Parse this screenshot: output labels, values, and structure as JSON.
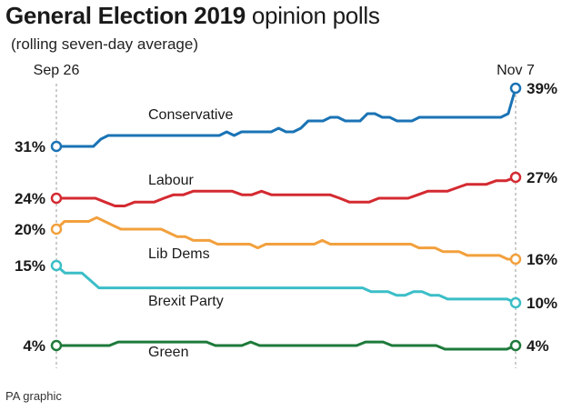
{
  "title_bold": "General Election 2019",
  "title_light": "opinion polls",
  "subtitle": "(rolling seven-day average)",
  "source": "PA graphic",
  "chart_data": {
    "type": "line",
    "title": "General Election 2019 opinion polls",
    "subtitle": "(rolling seven-day average)",
    "x_start_label": "Sep 26",
    "x_end_label": "Nov 7",
    "xlim": [
      0,
      42
    ],
    "ylim": [
      2,
      42
    ],
    "grid": false,
    "series": [
      {
        "name": "Conservative",
        "color": "#1a73b5",
        "start_label": "31%",
        "end_label": "39%",
        "values": [
          31,
          31,
          31,
          31,
          31,
          31,
          32,
          32.5,
          32.5,
          32.5,
          32.5,
          32.5,
          32.5,
          32.5,
          32.5,
          32.5,
          32.5,
          32.5,
          32.5,
          32.5,
          32.5,
          32.5,
          32.5,
          33,
          32.5,
          33,
          33,
          33,
          33,
          33,
          33.5,
          33,
          33,
          33.5,
          34.5,
          34.5,
          34.5,
          35,
          35,
          34.5,
          34.5,
          34.5,
          35.5,
          35.5,
          35,
          35,
          34.5,
          34.5,
          34.5,
          35,
          35,
          35,
          35,
          35,
          35,
          35,
          35,
          35,
          35,
          35,
          35,
          35.5,
          39
        ]
      },
      {
        "name": "Labour",
        "color": "#d42a31",
        "start_label": "24%",
        "end_label": "27%",
        "values": [
          24,
          24,
          24,
          24,
          24,
          23.5,
          23,
          23,
          23.5,
          23.5,
          23.5,
          24,
          24.5,
          24.5,
          25,
          25,
          25,
          25,
          25,
          24.5,
          24.5,
          25,
          24.5,
          24.5,
          24.5,
          24.5,
          24.5,
          24.5,
          24.5,
          24,
          23.5,
          23.5,
          23.5,
          24,
          24,
          24,
          24,
          24.5,
          25,
          25,
          25,
          25.5,
          26,
          26,
          26,
          26.5,
          26.5,
          27
        ]
      },
      {
        "name": "Lib Dems",
        "color": "#f2a03d",
        "start_label": "20%",
        "end_label": "16%",
        "values": [
          20,
          21,
          21,
          21,
          21,
          21.5,
          21,
          20.5,
          20,
          20,
          20,
          20,
          20,
          20,
          19.5,
          19,
          19,
          18.5,
          18.5,
          18.5,
          18,
          18,
          18,
          18,
          18,
          17.5,
          18,
          18,
          18,
          18,
          18,
          18,
          18,
          18.5,
          18,
          18,
          18,
          18,
          18,
          18,
          18,
          18,
          18,
          18,
          18,
          17.5,
          17.5,
          17.5,
          17,
          17,
          17,
          16.5,
          16.5,
          16.5,
          16.5,
          16.5,
          16,
          16
        ]
      },
      {
        "name": "Brexit Party",
        "color": "#3bbec7",
        "start_label": "15%",
        "end_label": "10%",
        "values": [
          15,
          14,
          14,
          14,
          13,
          12,
          12,
          12,
          12,
          12,
          12,
          12,
          12,
          12,
          12,
          12,
          12,
          12,
          12,
          12,
          12,
          12,
          12,
          12,
          12,
          12,
          12,
          12,
          12,
          12,
          12,
          12,
          12,
          12,
          12,
          12,
          12,
          11.5,
          11.5,
          11.5,
          11,
          11,
          11.5,
          11.5,
          11,
          11,
          10.5,
          10.5,
          10.5,
          10.5,
          10.5,
          10.5,
          10.5,
          10.5,
          10
        ]
      },
      {
        "name": "Green",
        "color": "#1e7a3a",
        "start_label": "4%",
        "end_label": "4%",
        "values": [
          4,
          4,
          4,
          4,
          4,
          4,
          4,
          4.5,
          4.5,
          4.5,
          4.5,
          4.5,
          4.5,
          4.5,
          4.5,
          4.5,
          4.5,
          4.5,
          4,
          4,
          4,
          4,
          4.5,
          4,
          4,
          4,
          4,
          4,
          4,
          4,
          4,
          4,
          4,
          4,
          4,
          4.5,
          4.5,
          4.5,
          4,
          4,
          4,
          4,
          4,
          4,
          3.5,
          3.5,
          3.5,
          3.5,
          3.5,
          3.5,
          3.5,
          3.5,
          4
        ]
      }
    ]
  }
}
